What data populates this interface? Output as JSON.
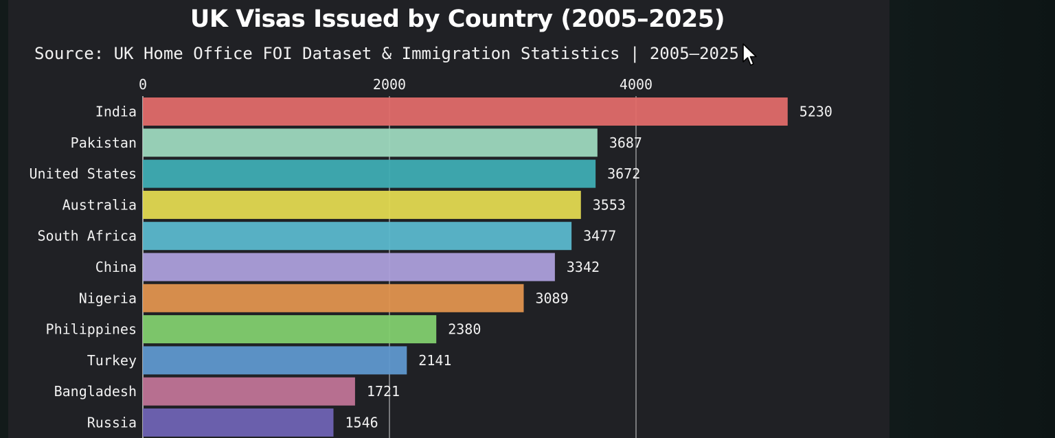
{
  "chart_data": {
    "type": "bar",
    "orientation": "horizontal",
    "title": "UK Visas Issued by Country (2005–2025)",
    "subtitle": "Source: UK Home Office FOI Dataset & Immigration Statistics | 2005–2025",
    "x_ticks": [
      0,
      2000,
      4000
    ],
    "x_tick_labels": [
      "0",
      "2000",
      "4000"
    ],
    "x_axis_position": "top",
    "grid": true,
    "categories": [
      "India",
      "Pakistan",
      "United States",
      "Australia",
      "South Africa",
      "China",
      "Nigeria",
      "Philippines",
      "Turkey",
      "Bangladesh",
      "Russia"
    ],
    "values": [
      5230,
      3687,
      3672,
      3553,
      3477,
      3342,
      3089,
      2380,
      2141,
      1721,
      1546
    ],
    "value_labels": [
      "5230",
      "3687",
      "3672",
      "3553",
      "3477",
      "3342",
      "3089",
      "2380",
      "2141",
      "1721",
      "1546"
    ],
    "colors": [
      "#e06c69",
      "#9dd8bd",
      "#3fadb3",
      "#e1d950",
      "#5bb8cc",
      "#ac9fda",
      "#e0944e",
      "#82cf6e",
      "#5f98cd",
      "#c07496",
      "#6f63b3"
    ]
  }
}
